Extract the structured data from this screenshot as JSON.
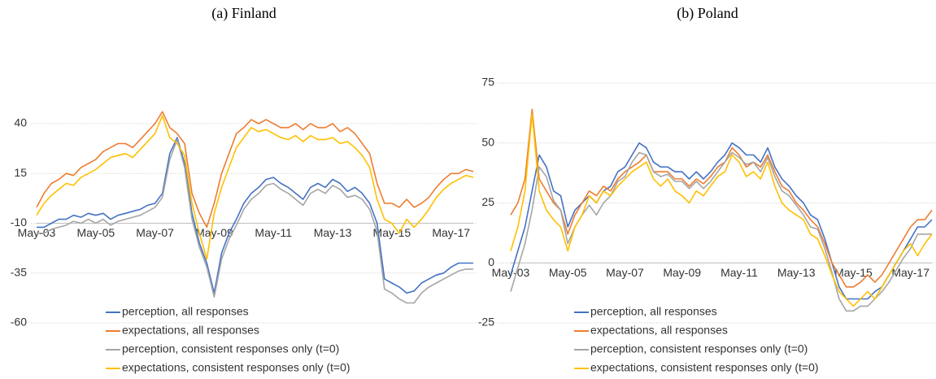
{
  "chart_data": [
    {
      "type": "line",
      "title": "(a) Finland",
      "categories": [
        "May-03",
        null,
        null,
        null,
        null,
        null,
        null,
        null,
        "May-05",
        null,
        null,
        null,
        null,
        null,
        null,
        null,
        "May-07",
        null,
        null,
        null,
        null,
        null,
        null,
        null,
        "May-09",
        null,
        null,
        null,
        null,
        null,
        null,
        null,
        "May-11",
        null,
        null,
        null,
        null,
        null,
        null,
        null,
        "May-13",
        null,
        null,
        null,
        null,
        null,
        null,
        null,
        "May-15",
        null,
        null,
        null,
        null,
        null,
        null,
        null,
        "May-17",
        null,
        null,
        null
      ],
      "ylim": [
        -60,
        50
      ],
      "yticks": [
        -60,
        -35,
        -10,
        15,
        40
      ],
      "grid": true,
      "x_axis_crosses": -10,
      "legend": "bottom",
      "series": [
        {
          "name": "perception, all responses",
          "color": "#4472c4",
          "values": [
            -12,
            -12,
            -10,
            -8,
            -8,
            -6,
            -7,
            -5,
            -6,
            -5,
            -8,
            -6,
            -5,
            -4,
            -3,
            -1,
            0,
            5,
            25,
            33,
            20,
            -5,
            -20,
            -30,
            -45,
            -25,
            -15,
            -8,
            0,
            5,
            8,
            12,
            13,
            10,
            8,
            5,
            2,
            8,
            10,
            8,
            12,
            10,
            6,
            8,
            5,
            0,
            -10,
            -38,
            -40,
            -42,
            -45,
            -44,
            -40,
            -38,
            -36,
            -35,
            -32,
            -30,
            -30,
            -30
          ]
        },
        {
          "name": "expectations, all responses",
          "color": "#ed7d31",
          "values": [
            -2,
            5,
            10,
            12,
            15,
            14,
            18,
            20,
            22,
            26,
            28,
            30,
            30,
            28,
            32,
            36,
            40,
            46,
            38,
            35,
            30,
            5,
            -5,
            -12,
            0,
            15,
            25,
            35,
            38,
            42,
            40,
            42,
            40,
            38,
            38,
            40,
            37,
            40,
            38,
            38,
            40,
            36,
            38,
            35,
            30,
            25,
            10,
            0,
            0,
            -2,
            2,
            -2,
            0,
            3,
            8,
            12,
            15,
            15,
            17,
            16
          ]
        },
        {
          "name": "perception, consistent responses only (t=0)",
          "color": "#a5a5a5",
          "values": [
            -15,
            -15,
            -13,
            -12,
            -11,
            -9,
            -10,
            -8,
            -10,
            -8,
            -11,
            -9,
            -8,
            -7,
            -6,
            -4,
            -2,
            3,
            22,
            32,
            18,
            -8,
            -22,
            -32,
            -47,
            -28,
            -18,
            -11,
            -3,
            2,
            5,
            9,
            10,
            7,
            5,
            2,
            -1,
            5,
            7,
            5,
            9,
            7,
            3,
            4,
            2,
            -3,
            -14,
            -43,
            -45,
            -48,
            -50,
            -50,
            -45,
            -42,
            -40,
            -38,
            -36,
            -34,
            -33,
            -33
          ]
        },
        {
          "name": "expectations, consistent responses only (t=0)",
          "color": "#ffc000",
          "values": [
            -6,
            0,
            4,
            7,
            10,
            9,
            13,
            15,
            17,
            20,
            23,
            24,
            25,
            23,
            27,
            31,
            35,
            44,
            33,
            30,
            24,
            0,
            -15,
            -28,
            -5,
            8,
            18,
            28,
            33,
            38,
            36,
            37,
            35,
            33,
            32,
            34,
            31,
            34,
            32,
            32,
            33,
            30,
            31,
            28,
            24,
            18,
            2,
            -8,
            -10,
            -15,
            -8,
            -12,
            -8,
            -3,
            3,
            7,
            10,
            12,
            14,
            13
          ]
        }
      ]
    },
    {
      "type": "line",
      "title": "(b) Poland",
      "categories": [
        "May-03",
        null,
        null,
        null,
        null,
        null,
        null,
        null,
        "May-05",
        null,
        null,
        null,
        null,
        null,
        null,
        null,
        "May-07",
        null,
        null,
        null,
        null,
        null,
        null,
        null,
        "May-09",
        null,
        null,
        null,
        null,
        null,
        null,
        null,
        "May-11",
        null,
        null,
        null,
        null,
        null,
        null,
        null,
        "May-13",
        null,
        null,
        null,
        null,
        null,
        null,
        null,
        "May-15",
        null,
        null,
        null,
        null,
        null,
        null,
        null,
        "May-17",
        null,
        null,
        null
      ],
      "ylim": [
        -25,
        75
      ],
      "yticks": [
        -25,
        0,
        25,
        50,
        75
      ],
      "grid": true,
      "x_axis_crosses": 0,
      "legend": "bottom",
      "series": [
        {
          "name": "perception, all responses",
          "color": "#4472c4",
          "values": [
            -5,
            5,
            15,
            30,
            45,
            40,
            30,
            28,
            15,
            22,
            25,
            28,
            25,
            30,
            32,
            38,
            40,
            45,
            50,
            48,
            42,
            40,
            40,
            38,
            38,
            35,
            38,
            35,
            38,
            42,
            45,
            50,
            48,
            45,
            45,
            42,
            48,
            40,
            35,
            32,
            28,
            25,
            20,
            18,
            10,
            0,
            -10,
            -15,
            -15,
            -15,
            -15,
            -12,
            -10,
            -5,
            0,
            5,
            10,
            15,
            15,
            18
          ]
        },
        {
          "name": "expectations, all responses",
          "color": "#ed7d31",
          "values": [
            20,
            25,
            35,
            64,
            35,
            30,
            25,
            22,
            12,
            20,
            25,
            30,
            28,
            32,
            30,
            35,
            38,
            40,
            42,
            45,
            38,
            38,
            38,
            35,
            35,
            32,
            35,
            33,
            36,
            40,
            42,
            48,
            45,
            40,
            42,
            40,
            45,
            38,
            32,
            30,
            25,
            22,
            18,
            15,
            8,
            0,
            -5,
            -10,
            -10,
            -8,
            -5,
            -8,
            -5,
            0,
            5,
            10,
            15,
            18,
            18,
            22
          ]
        },
        {
          "name": "perception, consistent responses only (t=0)",
          "color": "#a5a5a5",
          "values": [
            -12,
            -2,
            8,
            22,
            40,
            36,
            26,
            22,
            8,
            15,
            20,
            24,
            20,
            25,
            28,
            34,
            36,
            42,
            46,
            45,
            38,
            36,
            37,
            34,
            34,
            31,
            34,
            31,
            34,
            38,
            42,
            46,
            44,
            41,
            42,
            38,
            44,
            36,
            30,
            28,
            24,
            20,
            15,
            14,
            6,
            -4,
            -15,
            -20,
            -20,
            -18,
            -18,
            -15,
            -12,
            -8,
            -3,
            2,
            6,
            12,
            12,
            12
          ]
        },
        {
          "name": "expectations, consistent responses only (t=0)",
          "color": "#ffc000",
          "values": [
            5,
            15,
            30,
            62,
            30,
            22,
            18,
            15,
            5,
            15,
            20,
            28,
            25,
            30,
            28,
            32,
            35,
            38,
            40,
            42,
            35,
            32,
            35,
            30,
            28,
            25,
            30,
            28,
            32,
            36,
            38,
            45,
            42,
            36,
            38,
            35,
            42,
            32,
            25,
            22,
            20,
            18,
            12,
            10,
            3,
            -5,
            -12,
            -15,
            -18,
            -15,
            -12,
            -15,
            -10,
            -5,
            0,
            5,
            8,
            3,
            8,
            12
          ]
        }
      ]
    }
  ]
}
